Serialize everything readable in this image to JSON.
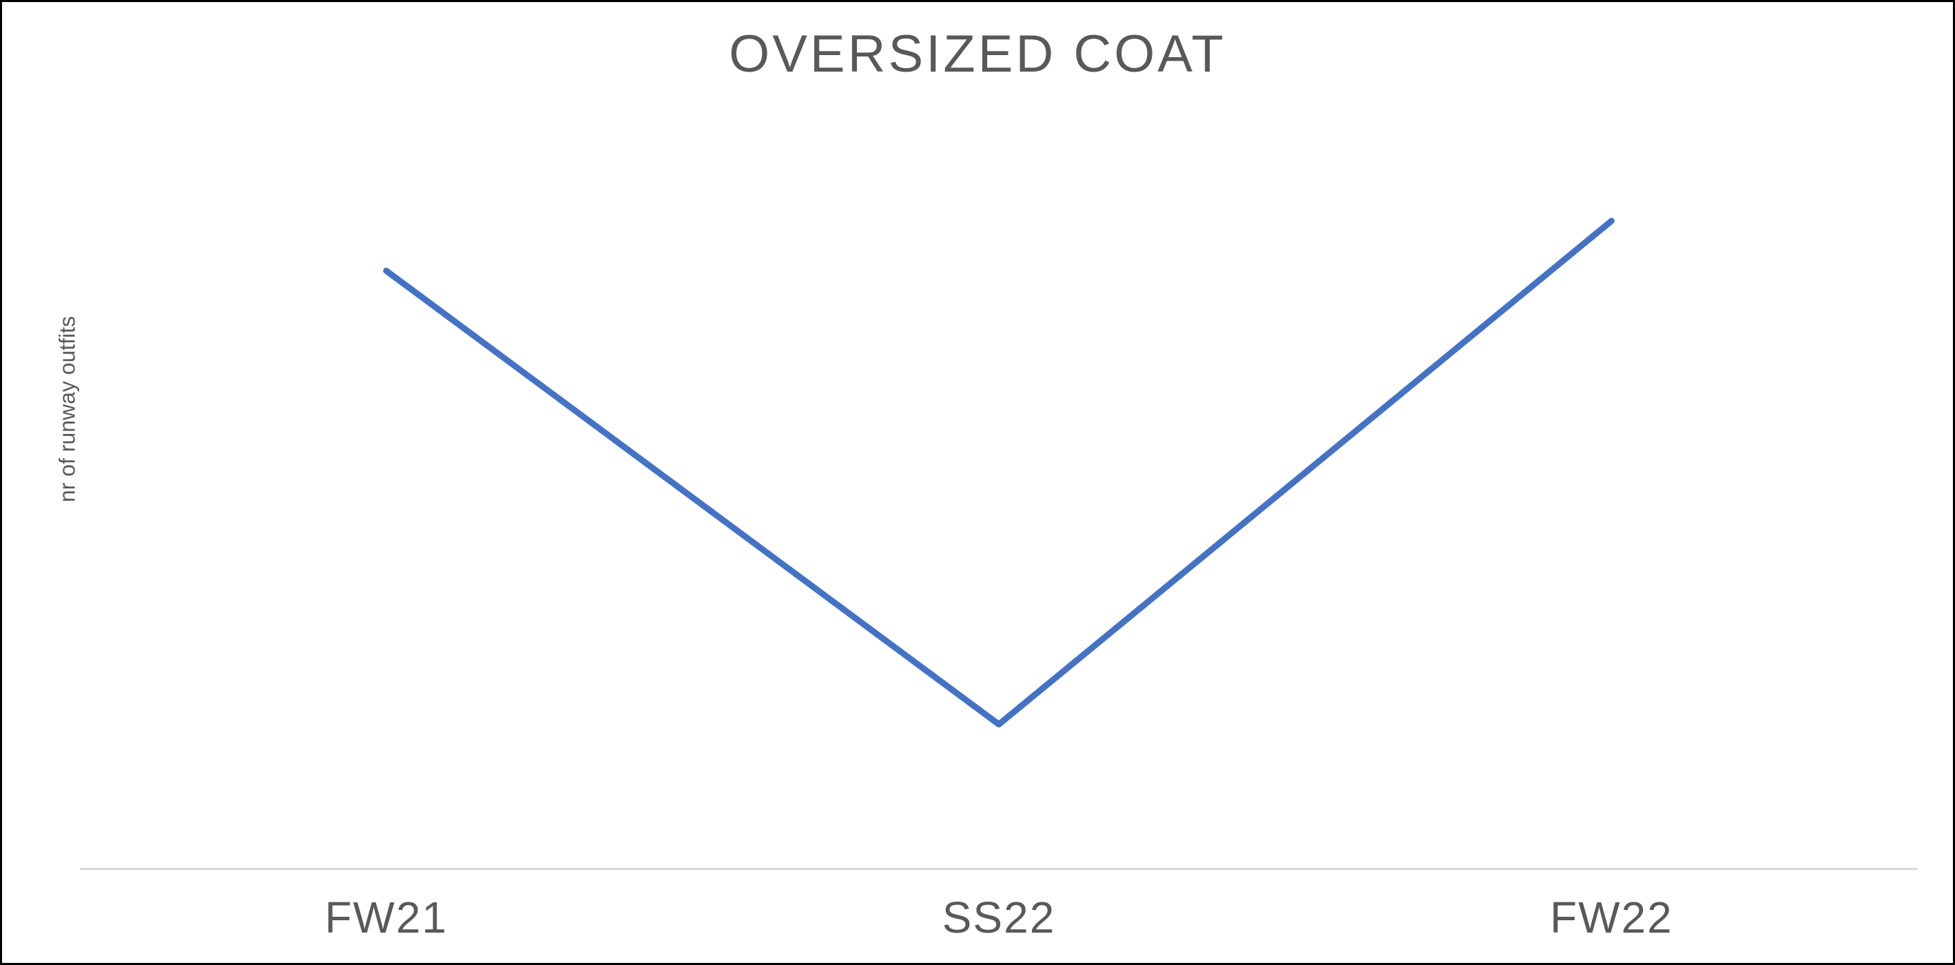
{
  "chart_data": {
    "type": "line",
    "title": "OVERSIZED COAT",
    "y_label": "nr of runway outfits",
    "categories": [
      "FW21",
      "SS22",
      "FW22"
    ],
    "series": [
      {
        "name": "Oversized coat",
        "color": "#4472c4",
        "values": [
          12,
          2.9,
          13
        ]
      }
    ],
    "ylim": [
      0,
      15
    ]
  }
}
